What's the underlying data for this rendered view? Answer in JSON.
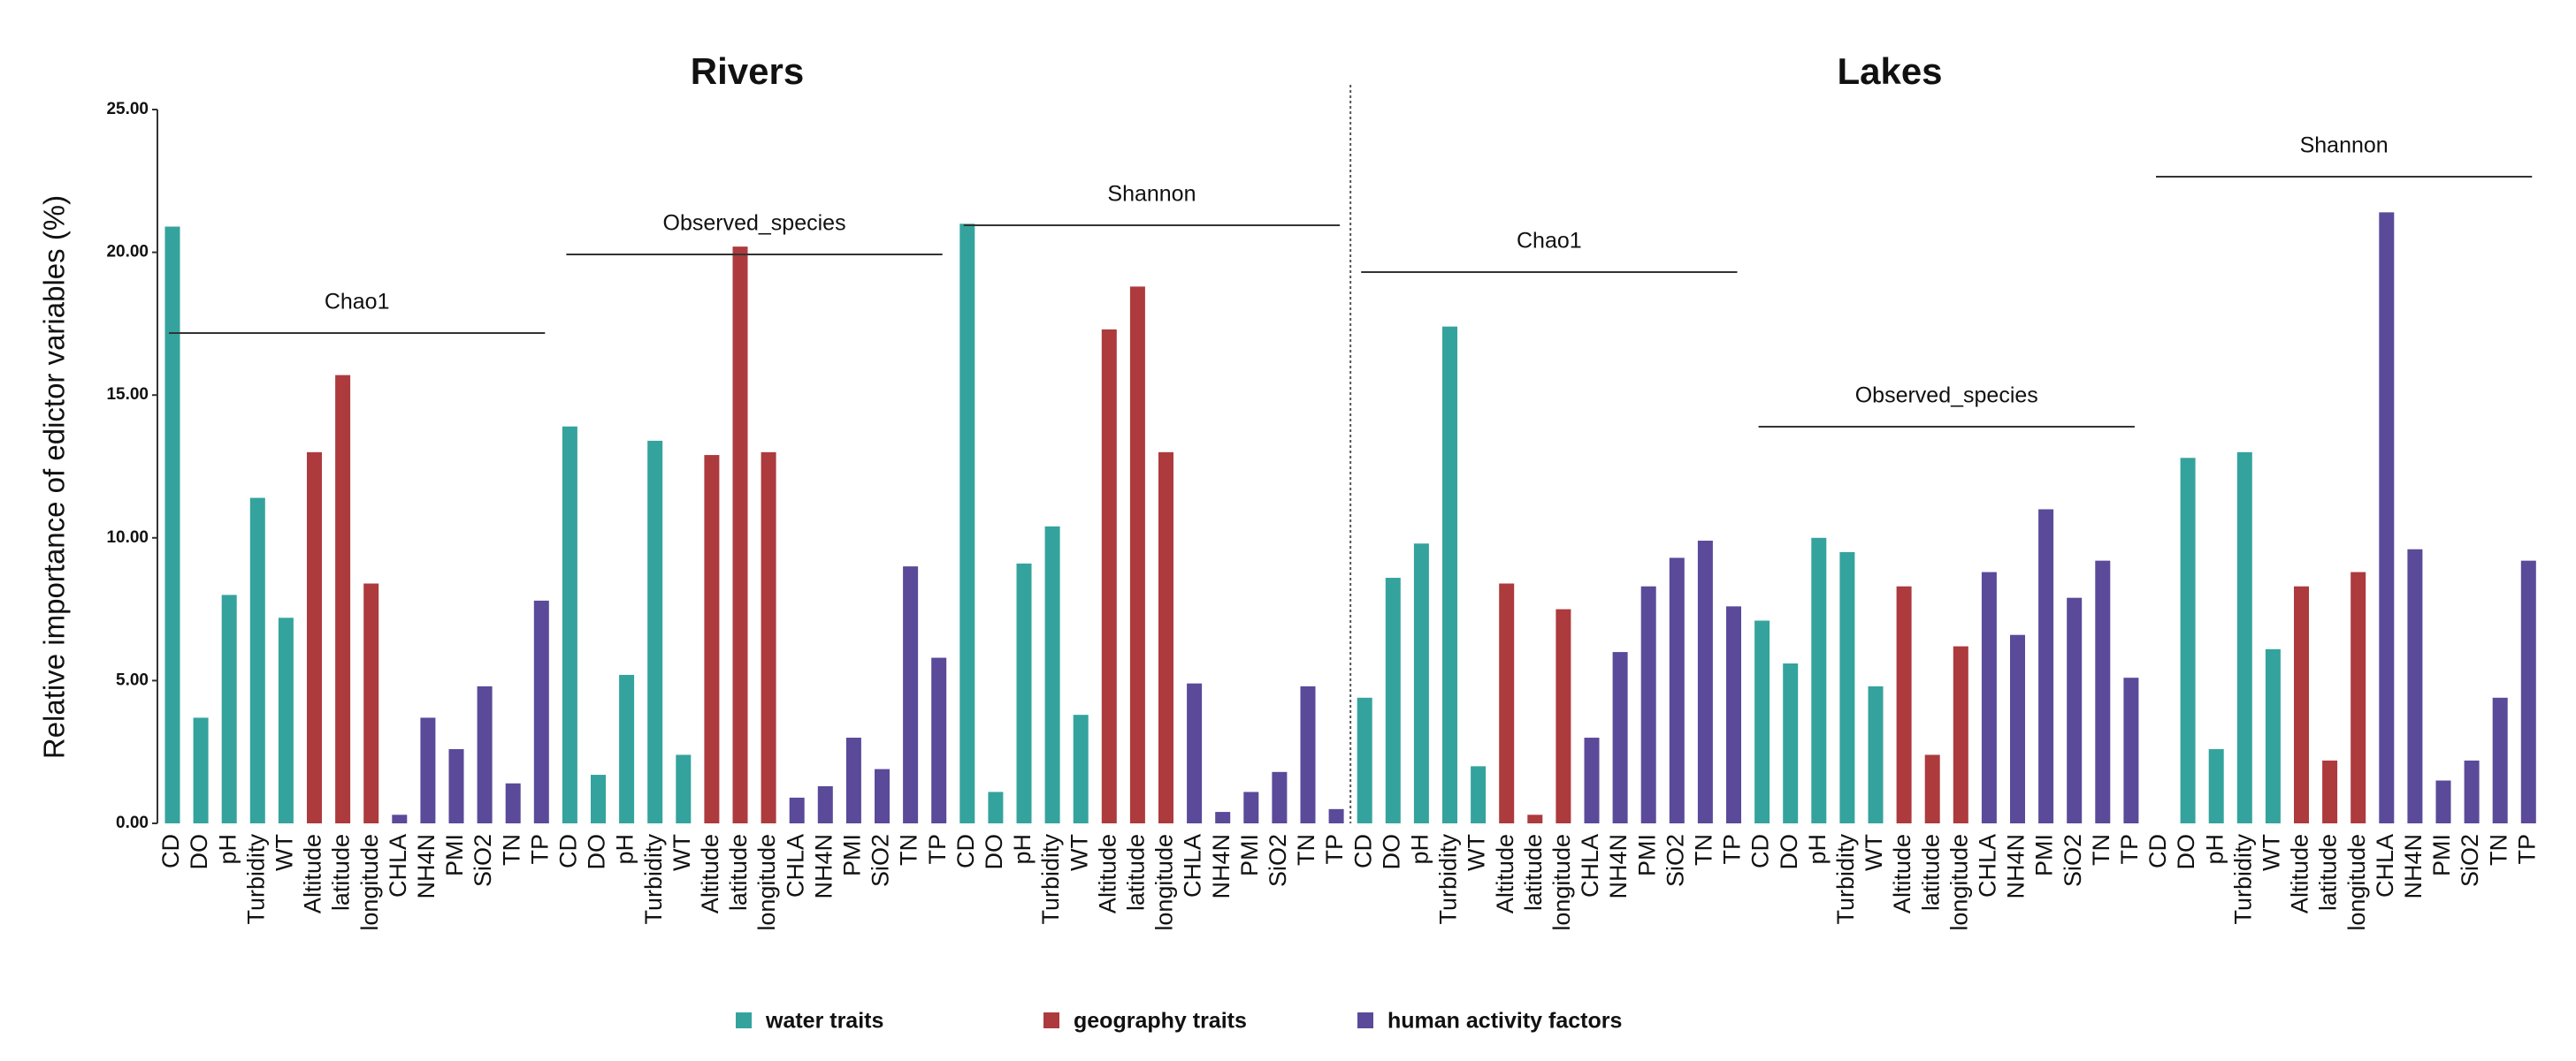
{
  "chart_data": {
    "type": "bar",
    "ylabel": "Relative importance of edictor variables (%)",
    "ylim": [
      0,
      25
    ],
    "yticks": [
      {
        "value": 0,
        "label": "0.00"
      },
      {
        "value": 5,
        "label": "5.00"
      },
      {
        "value": 10,
        "label": "10.00"
      },
      {
        "value": 15,
        "label": "15.00"
      },
      {
        "value": 20,
        "label": "20.00"
      },
      {
        "value": 25,
        "label": "25.00"
      }
    ],
    "series": [
      {
        "name": "water traits",
        "color": "#34a39d",
        "categories": [
          "CD",
          "DO",
          "pH",
          "Turbidity",
          "WT"
        ]
      },
      {
        "name": "geography traits",
        "color": "#ad3a3d",
        "categories": [
          "Altitude",
          "latitude",
          "longitude"
        ]
      },
      {
        "name": "human activity factors",
        "color": "#5a4a99",
        "categories": [
          "CHLA",
          "NH4N",
          "PMI",
          "SiO2",
          "TN",
          "TP"
        ]
      }
    ],
    "panels": [
      {
        "title": "Rivers",
        "groups": [
          {
            "label": "Chao1",
            "values": [
              20.9,
              3.7,
              8.0,
              11.4,
              7.2,
              13.0,
              15.7,
              8.4,
              0.3,
              3.7,
              2.6,
              4.8,
              1.4,
              7.8
            ]
          },
          {
            "label": "Observed_species",
            "values": [
              13.9,
              1.7,
              5.2,
              13.4,
              2.4,
              12.9,
              20.2,
              13.0,
              0.9,
              1.3,
              3.0,
              1.9,
              9.0,
              5.8
            ]
          },
          {
            "label": "Shannon",
            "values": [
              21.0,
              1.1,
              9.1,
              10.4,
              3.8,
              17.3,
              18.8,
              13.0,
              4.9,
              0.4,
              1.1,
              1.8,
              4.8,
              0.5
            ]
          }
        ]
      },
      {
        "title": "Lakes",
        "groups": [
          {
            "label": "Chao1",
            "values": [
              4.4,
              8.6,
              9.8,
              17.4,
              2.0,
              8.4,
              0.3,
              7.5,
              3.0,
              6.0,
              8.3,
              9.3,
              9.9,
              7.6
            ]
          },
          {
            "label": "Observed_species",
            "values": [
              7.1,
              5.6,
              10.0,
              9.5,
              4.8,
              8.3,
              2.4,
              6.2,
              8.8,
              6.6,
              11.0,
              7.9,
              9.2,
              5.1
            ]
          },
          {
            "label": "Shannon",
            "values": [
              0,
              12.8,
              2.6,
              13.0,
              6.1,
              8.3,
              2.2,
              8.8,
              21.4,
              9.6,
              1.5,
              2.2,
              4.4,
              9.2
            ]
          }
        ]
      }
    ]
  }
}
